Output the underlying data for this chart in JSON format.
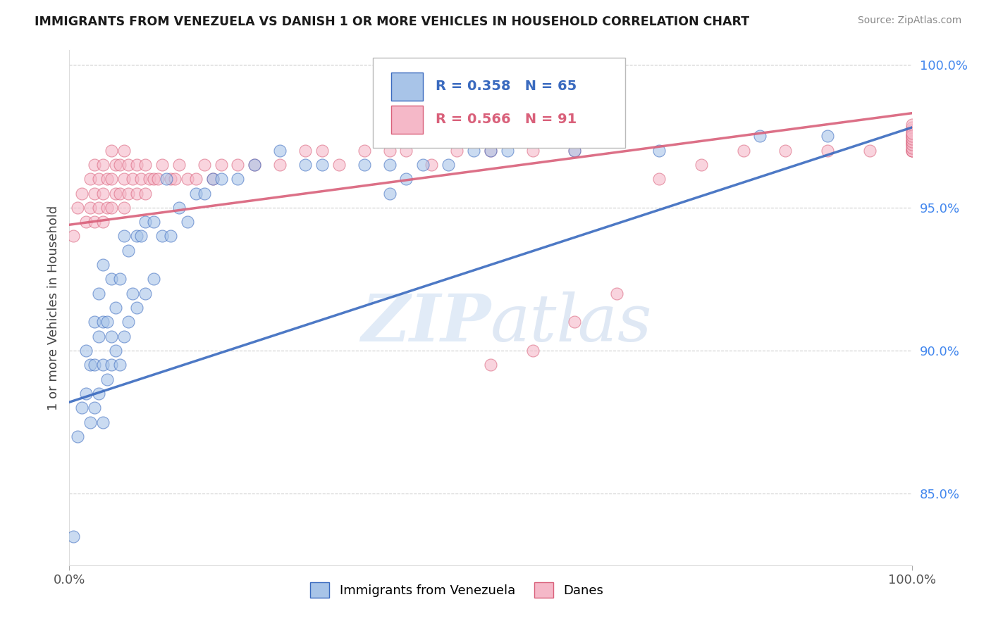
{
  "title": "IMMIGRANTS FROM VENEZUELA VS DANISH 1 OR MORE VEHICLES IN HOUSEHOLD CORRELATION CHART",
  "source": "Source: ZipAtlas.com",
  "ylabel": "1 or more Vehicles in Household",
  "xlim": [
    0.0,
    1.0
  ],
  "ylim": [
    0.825,
    1.005
  ],
  "yticks": [
    0.85,
    0.9,
    0.95,
    1.0
  ],
  "ytick_labels": [
    "85.0%",
    "90.0%",
    "95.0%",
    "100.0%"
  ],
  "blue_color": "#a8c4e8",
  "pink_color": "#f5b8c8",
  "blue_line_color": "#3a6abf",
  "pink_line_color": "#d9607a",
  "r_blue": 0.358,
  "n_blue": 65,
  "r_pink": 0.566,
  "n_pink": 91,
  "watermark_zip": "ZIP",
  "watermark_atlas": "atlas",
  "blue_scatter_x": [
    0.005,
    0.01,
    0.015,
    0.02,
    0.02,
    0.025,
    0.025,
    0.03,
    0.03,
    0.03,
    0.035,
    0.035,
    0.035,
    0.04,
    0.04,
    0.04,
    0.04,
    0.045,
    0.045,
    0.05,
    0.05,
    0.05,
    0.055,
    0.055,
    0.06,
    0.06,
    0.065,
    0.065,
    0.07,
    0.07,
    0.075,
    0.08,
    0.08,
    0.085,
    0.09,
    0.09,
    0.1,
    0.1,
    0.11,
    0.115,
    0.12,
    0.13,
    0.14,
    0.15,
    0.16,
    0.17,
    0.18,
    0.2,
    0.22,
    0.25,
    0.28,
    0.3,
    0.35,
    0.38,
    0.42,
    0.48,
    0.52,
    0.38,
    0.4,
    0.45,
    0.5,
    0.6,
    0.7,
    0.82,
    0.9
  ],
  "blue_scatter_y": [
    0.835,
    0.87,
    0.88,
    0.885,
    0.9,
    0.875,
    0.895,
    0.88,
    0.895,
    0.91,
    0.885,
    0.905,
    0.92,
    0.875,
    0.895,
    0.91,
    0.93,
    0.89,
    0.91,
    0.895,
    0.905,
    0.925,
    0.9,
    0.915,
    0.895,
    0.925,
    0.905,
    0.94,
    0.91,
    0.935,
    0.92,
    0.915,
    0.94,
    0.94,
    0.92,
    0.945,
    0.925,
    0.945,
    0.94,
    0.96,
    0.94,
    0.95,
    0.945,
    0.955,
    0.955,
    0.96,
    0.96,
    0.96,
    0.965,
    0.97,
    0.965,
    0.965,
    0.965,
    0.965,
    0.965,
    0.97,
    0.97,
    0.955,
    0.96,
    0.965,
    0.97,
    0.97,
    0.97,
    0.975,
    0.975
  ],
  "pink_scatter_x": [
    0.005,
    0.01,
    0.015,
    0.02,
    0.025,
    0.025,
    0.03,
    0.03,
    0.03,
    0.035,
    0.035,
    0.04,
    0.04,
    0.04,
    0.045,
    0.045,
    0.05,
    0.05,
    0.05,
    0.055,
    0.055,
    0.06,
    0.06,
    0.065,
    0.065,
    0.065,
    0.07,
    0.07,
    0.075,
    0.08,
    0.08,
    0.085,
    0.09,
    0.09,
    0.095,
    0.1,
    0.105,
    0.11,
    0.12,
    0.125,
    0.13,
    0.14,
    0.15,
    0.16,
    0.17,
    0.18,
    0.2,
    0.22,
    0.25,
    0.28,
    0.3,
    0.32,
    0.35,
    0.38,
    0.4,
    0.43,
    0.46,
    0.5,
    0.55,
    0.6,
    0.5,
    0.55,
    0.6,
    0.65,
    0.7,
    0.75,
    0.8,
    0.85,
    0.9,
    0.95,
    1.0,
    1.0,
    1.0,
    1.0,
    1.0,
    1.0,
    1.0,
    1.0,
    1.0,
    1.0,
    1.0,
    1.0,
    1.0,
    1.0,
    1.0,
    1.0,
    1.0,
    1.0,
    1.0,
    1.0,
    1.0
  ],
  "pink_scatter_y": [
    0.94,
    0.95,
    0.955,
    0.945,
    0.95,
    0.96,
    0.945,
    0.955,
    0.965,
    0.95,
    0.96,
    0.945,
    0.955,
    0.965,
    0.95,
    0.96,
    0.95,
    0.96,
    0.97,
    0.955,
    0.965,
    0.955,
    0.965,
    0.95,
    0.96,
    0.97,
    0.955,
    0.965,
    0.96,
    0.955,
    0.965,
    0.96,
    0.955,
    0.965,
    0.96,
    0.96,
    0.96,
    0.965,
    0.96,
    0.96,
    0.965,
    0.96,
    0.96,
    0.965,
    0.96,
    0.965,
    0.965,
    0.965,
    0.965,
    0.97,
    0.97,
    0.965,
    0.97,
    0.97,
    0.97,
    0.965,
    0.97,
    0.97,
    0.97,
    0.97,
    0.895,
    0.9,
    0.91,
    0.92,
    0.96,
    0.965,
    0.97,
    0.97,
    0.97,
    0.97,
    0.97,
    0.972,
    0.973,
    0.974,
    0.975,
    0.976,
    0.977,
    0.978,
    0.979,
    0.975,
    0.973,
    0.972,
    0.971,
    0.97,
    0.97,
    0.971,
    0.972,
    0.973,
    0.974,
    0.975,
    0.976
  ],
  "blue_line_x": [
    0.0,
    1.0
  ],
  "blue_line_y": [
    0.882,
    0.978
  ],
  "pink_line_x": [
    0.0,
    1.0
  ],
  "pink_line_y": [
    0.944,
    0.983
  ]
}
